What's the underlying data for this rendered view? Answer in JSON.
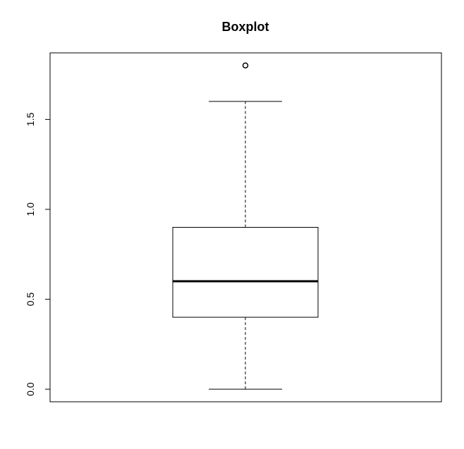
{
  "chart_data": {
    "type": "box",
    "title": "Boxplot",
    "xlabel": "",
    "ylabel": "",
    "ylim": [
      -0.07,
      1.87
    ],
    "yticks": [
      0.0,
      0.5,
      1.0,
      1.5
    ],
    "ytick_labels": [
      "0.0",
      "0.5",
      "1.0",
      "1.5"
    ],
    "grid": false,
    "box": {
      "whisker_low": 0.0,
      "q1": 0.4,
      "median": 0.6,
      "q3": 0.9,
      "whisker_high": 1.6,
      "outliers": [
        1.8
      ]
    },
    "colors": {
      "stroke": "#000000",
      "background": "#ffffff"
    }
  }
}
